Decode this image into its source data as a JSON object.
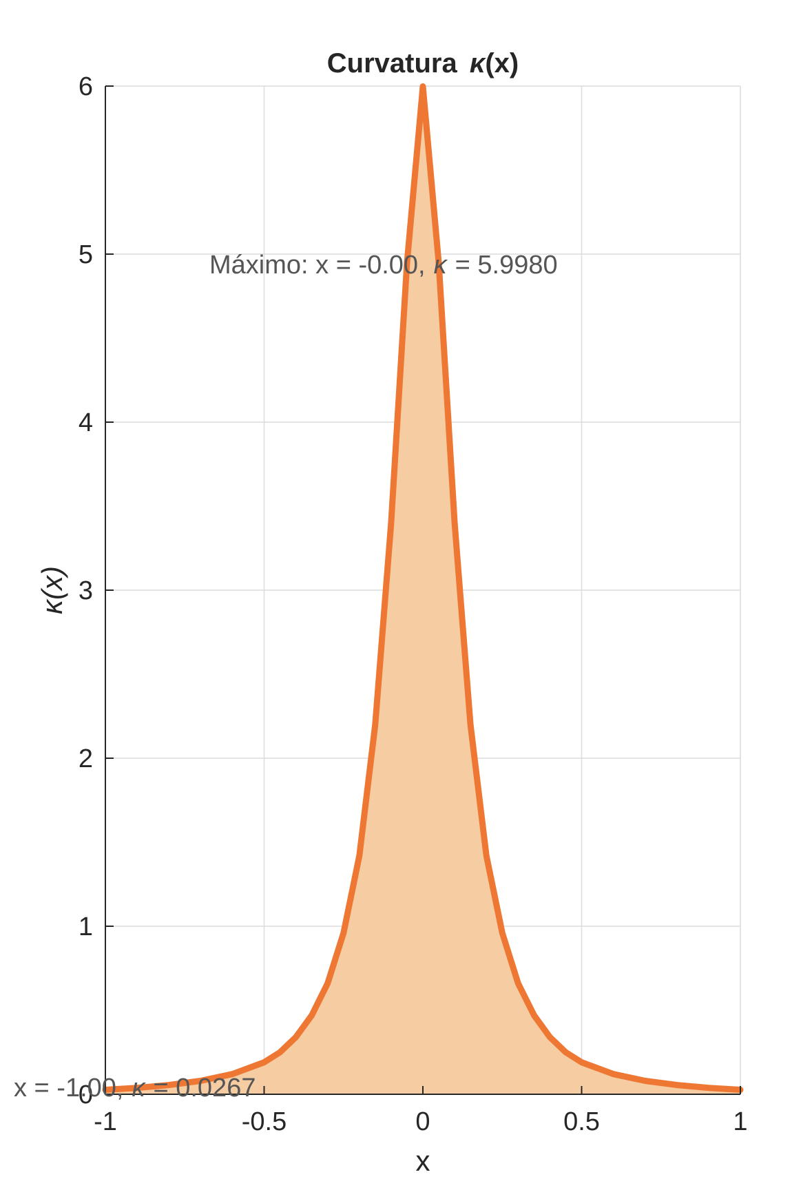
{
  "chart_data": {
    "type": "area",
    "title_prefix": "Curvatura",
    "title_symbol": "κ",
    "title_suffix": "(x)",
    "xlabel": "x",
    "ylabel": "κ(x)",
    "xlim": [
      -1,
      1
    ],
    "ylim": [
      0,
      6
    ],
    "xticks": [
      -1,
      -0.5,
      0,
      0.5,
      1
    ],
    "xtick_labels": [
      "-1",
      "-0.5",
      "0",
      "0.5",
      "1"
    ],
    "yticks": [
      0,
      1,
      2,
      3,
      4,
      5,
      6
    ],
    "ytick_labels": [
      "0",
      "1",
      "2",
      "3",
      "4",
      "5",
      "6"
    ],
    "grid": true,
    "colors": {
      "line": "#ee7733",
      "fill": "#f6cda2"
    },
    "series": [
      {
        "x": [
          -1,
          -0.9,
          -0.8,
          -0.7,
          -0.6,
          -0.5,
          -0.45,
          -0.4,
          -0.35,
          -0.3,
          -0.25,
          -0.2,
          -0.15,
          -0.1,
          -0.05,
          0,
          0.05,
          0.1,
          0.15,
          0.2,
          0.25,
          0.3,
          0.35,
          0.4,
          0.45,
          0.5,
          0.6,
          0.7,
          0.8,
          0.9,
          1
        ],
        "y": [
          0.0267,
          0.038,
          0.055,
          0.08,
          0.12,
          0.19,
          0.25,
          0.34,
          0.47,
          0.66,
          0.96,
          1.42,
          2.2,
          3.4,
          4.95,
          5.998,
          4.95,
          3.4,
          2.2,
          1.42,
          0.96,
          0.66,
          0.47,
          0.34,
          0.25,
          0.19,
          0.12,
          0.08,
          0.055,
          0.038,
          0.0267
        ]
      }
    ],
    "annotations": [
      {
        "prefix": "Máximo:  x  =  -0.00,",
        "symbol": "κ",
        "suffix": "=  5.9980",
        "x": -0.0,
        "y": 5.998
      },
      {
        "prefix": "x  =  -1.00,",
        "symbol": "κ",
        "suffix": "=  0.0267",
        "x": -1.0,
        "y": 0.0267
      }
    ]
  }
}
